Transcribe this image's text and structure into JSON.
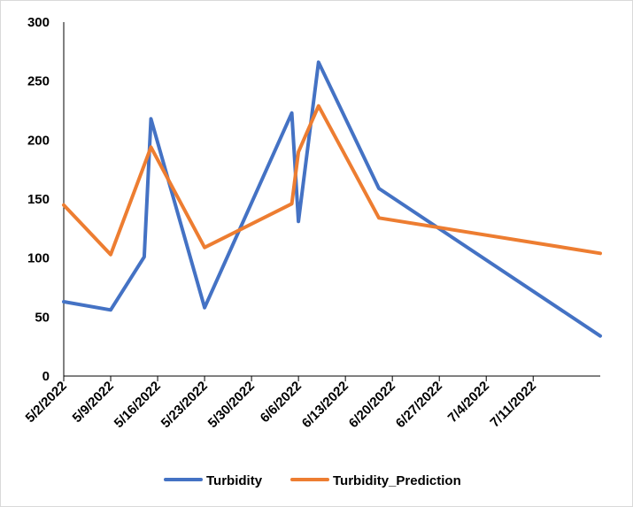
{
  "chart_data": {
    "type": "line",
    "title": "",
    "xlabel": "",
    "ylabel": "",
    "ylim": [
      0,
      300
    ],
    "y_ticks": [
      0,
      50,
      100,
      150,
      200,
      250,
      300
    ],
    "x_range": [
      "2022-05-02",
      "2022-07-21"
    ],
    "x_tick_labels": [
      "5/2/2022",
      "5/9/2022",
      "5/16/2022",
      "5/23/2022",
      "5/30/2022",
      "6/6/2022",
      "6/13/2022",
      "6/20/2022",
      "6/27/2022",
      "7/4/2022",
      "7/11/2022"
    ],
    "x_tick_dates": [
      "2022-05-02",
      "2022-05-09",
      "2022-05-16",
      "2022-05-23",
      "2022-05-30",
      "2022-06-06",
      "2022-06-13",
      "2022-06-20",
      "2022-06-27",
      "2022-07-04",
      "2022-07-11"
    ],
    "grid": false,
    "legend_position": "bottom",
    "series": [
      {
        "name": "Turbidity",
        "color": "#4472C4",
        "points": [
          {
            "x": "2022-05-02",
            "y": 63
          },
          {
            "x": "2022-05-09",
            "y": 56
          },
          {
            "x": "2022-05-14",
            "y": 101
          },
          {
            "x": "2022-05-15",
            "y": 218
          },
          {
            "x": "2022-05-23",
            "y": 58
          },
          {
            "x": "2022-06-05",
            "y": 223
          },
          {
            "x": "2022-06-06",
            "y": 131
          },
          {
            "x": "2022-06-09",
            "y": 266
          },
          {
            "x": "2022-06-18",
            "y": 159
          },
          {
            "x": "2022-07-21",
            "y": 34
          }
        ]
      },
      {
        "name": "Turbidity_Prediction",
        "color": "#ED7D31",
        "points": [
          {
            "x": "2022-05-02",
            "y": 145
          },
          {
            "x": "2022-05-09",
            "y": 103
          },
          {
            "x": "2022-05-15",
            "y": 194
          },
          {
            "x": "2022-05-23",
            "y": 109
          },
          {
            "x": "2022-06-05",
            "y": 146
          },
          {
            "x": "2022-06-06",
            "y": 190
          },
          {
            "x": "2022-06-09",
            "y": 229
          },
          {
            "x": "2022-06-18",
            "y": 134
          },
          {
            "x": "2022-07-21",
            "y": 104
          }
        ]
      }
    ]
  }
}
